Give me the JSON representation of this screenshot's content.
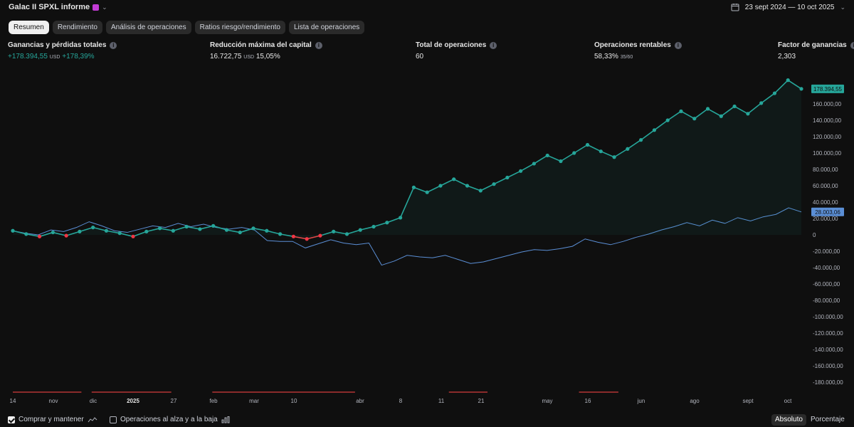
{
  "header": {
    "title": "Galac II SPXL informe",
    "date_range": "23 sept 2024 — 10 oct 2025"
  },
  "tabs": [
    {
      "label": "Resumen",
      "active": true
    },
    {
      "label": "Rendimiento",
      "active": false
    },
    {
      "label": "Análisis de operaciones",
      "active": false
    },
    {
      "label": "Ratios riesgo/rendimiento",
      "active": false
    },
    {
      "label": "Lista de operaciones",
      "active": false
    }
  ],
  "metrics": {
    "pnl": {
      "label": "Ganancias y pérdidas totales",
      "value": "+178.394,55",
      "unit": "USD",
      "pct": "+178,39%"
    },
    "drawdown": {
      "label": "Reducción máxima del capital",
      "value": "16.722,75",
      "unit": "USD",
      "pct": "15,05%"
    },
    "trades": {
      "label": "Total de operaciones",
      "value": "60"
    },
    "profitable": {
      "label": "Operaciones rentables",
      "value": "58,33%",
      "ratio": "35/60"
    },
    "profit_factor": {
      "label": "Factor de ganancias",
      "value": "2,303"
    }
  },
  "chart_data": {
    "type": "line",
    "y_axis": {
      "ylim": [
        -190000,
        190000
      ],
      "ticks": [
        160000,
        140000,
        120000,
        100000,
        80000,
        60000,
        40000,
        20000,
        0,
        -20000,
        -40000,
        -60000,
        -80000,
        -100000,
        -120000,
        -140000,
        -160000,
        -180000
      ],
      "tick_labels": [
        "160.000,00",
        "140.000,00",
        "120.000,00",
        "100.000,00",
        "80.000,00",
        "60.000,00",
        "40.000,00",
        "20.000,00",
        "0",
        "-20.000,00",
        "-40.000,00",
        "-60.000,00",
        "-80.000,00",
        "-100.000,00",
        "-120.000,00",
        "-140.000,00",
        "-160.000,00",
        "-180.000,00"
      ]
    },
    "x_tick_labels": [
      {
        "text": "14",
        "bold": false
      },
      {
        "text": "nov",
        "bold": false
      },
      {
        "text": "dic",
        "bold": false
      },
      {
        "text": "2025",
        "bold": true
      },
      {
        "text": "27",
        "bold": false
      },
      {
        "text": "feb",
        "bold": false
      },
      {
        "text": "mar",
        "bold": false
      },
      {
        "text": "10",
        "bold": false
      },
      {
        "text": "abr",
        "bold": false
      },
      {
        "text": "8",
        "bold": false
      },
      {
        "text": "11",
        "bold": false
      },
      {
        "text": "21",
        "bold": false
      },
      {
        "text": "may",
        "bold": false
      },
      {
        "text": "16",
        "bold": false
      },
      {
        "text": "jun",
        "bold": false
      },
      {
        "text": "ago",
        "bold": false
      },
      {
        "text": "sept",
        "bold": false
      },
      {
        "text": "oct",
        "bold": false
      }
    ],
    "series": [
      {
        "color": "#26a69a",
        "values": [
          5000,
          1000,
          -2000,
          3000,
          -1000,
          4000,
          9000,
          5000,
          2000,
          -2000,
          4000,
          8000,
          5000,
          10000,
          7000,
          11000,
          6000,
          3000,
          8000,
          5000,
          1000,
          -2000,
          -5000,
          -1000,
          4000,
          1000,
          6000,
          10000,
          15000,
          21000,
          58000,
          52000,
          60000,
          68000,
          60000,
          54000,
          62000,
          70000,
          78000,
          87000,
          97000,
          90000,
          100000,
          110000,
          102000,
          95000,
          105000,
          116000,
          128000,
          140000,
          151000,
          142000,
          154000,
          145000,
          157000,
          148000,
          161000,
          173000,
          189000,
          178394.55
        ],
        "last_label": "178.394,55"
      },
      {
        "color": "#5b8fd6",
        "values": [
          5000,
          2000,
          0,
          6000,
          4000,
          9000,
          16000,
          11000,
          5000,
          3000,
          7000,
          11000,
          9000,
          14000,
          10000,
          13000,
          9000,
          7000,
          9000,
          6000,
          -7000,
          -8000,
          -8000,
          -16000,
          -11000,
          -6000,
          -10000,
          -12000,
          -10000,
          -37000,
          -32000,
          -25000,
          -27000,
          -28000,
          -25000,
          -30000,
          -35000,
          -33000,
          -29000,
          -25000,
          -21000,
          -18000,
          -19000,
          -17000,
          -14000,
          -5000,
          -9000,
          -12000,
          -8000,
          -3000,
          1000,
          6000,
          10000,
          15000,
          11000,
          18000,
          14000,
          21000,
          17000,
          22000,
          25000,
          33000,
          28003.06
        ],
        "last_label": "28.003,06"
      }
    ],
    "period_bars": [
      [
        0.0,
        0.087
      ],
      [
        0.1,
        0.201
      ],
      [
        0.253,
        0.434
      ],
      [
        0.553,
        0.602
      ],
      [
        0.718,
        0.768
      ]
    ]
  },
  "footer": {
    "buy_hold_label": "Comprar y mantener",
    "buy_hold_checked": true,
    "ops_label": "Operaciones al alza y a la baja",
    "ops_checked": false,
    "mode_absolute": "Absoluto",
    "mode_percent": "Porcentaje"
  }
}
